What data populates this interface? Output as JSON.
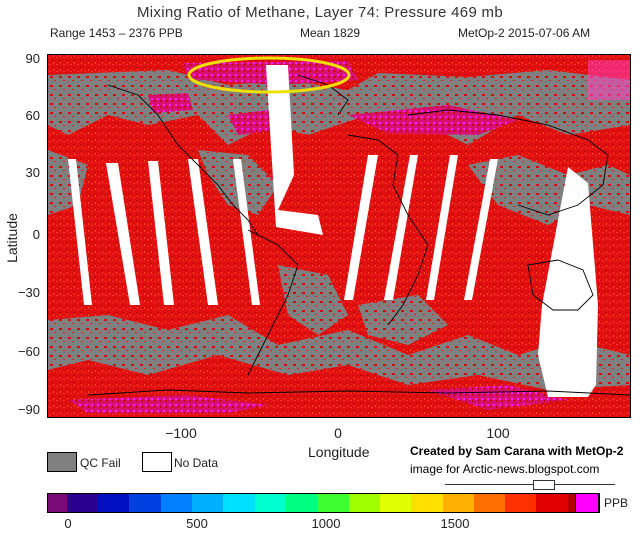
{
  "header": {
    "title": "Mixing Ratio of Methane, Layer 74: Pressure 469 mb",
    "range": "Range 1453 – 2376 PPB",
    "mean": "Mean 1829",
    "satellite_date": "MetOp-2 2015-07-06 AM"
  },
  "axes": {
    "ylabel": "Latitude",
    "xlabel": "Longitude",
    "yticks": [
      "90",
      "60",
      "30",
      "0",
      "−30",
      "−60",
      "−90"
    ],
    "xticks": [
      "−100",
      "0",
      "100"
    ]
  },
  "legend": {
    "qc_fail": "QC Fail",
    "no_data": "No Data",
    "qc_fail_color": "#808080",
    "no_data_color": "#ffffff"
  },
  "credit": {
    "line1": "Created by Sam Carana with MetOp-2",
    "line2": "image for Arctic-news.blogspot.com"
  },
  "colorbar": {
    "unit": "PPB",
    "ticks": [
      "0",
      "500",
      "1000",
      "1500"
    ],
    "low_color": "#7a0c7a",
    "high_color": "#ff00ff"
  },
  "colors": {
    "methane_high": "#e01010",
    "highlight_ellipse": "#f0e000",
    "swath_gap": "#ffffff",
    "coast": "#000000"
  }
}
